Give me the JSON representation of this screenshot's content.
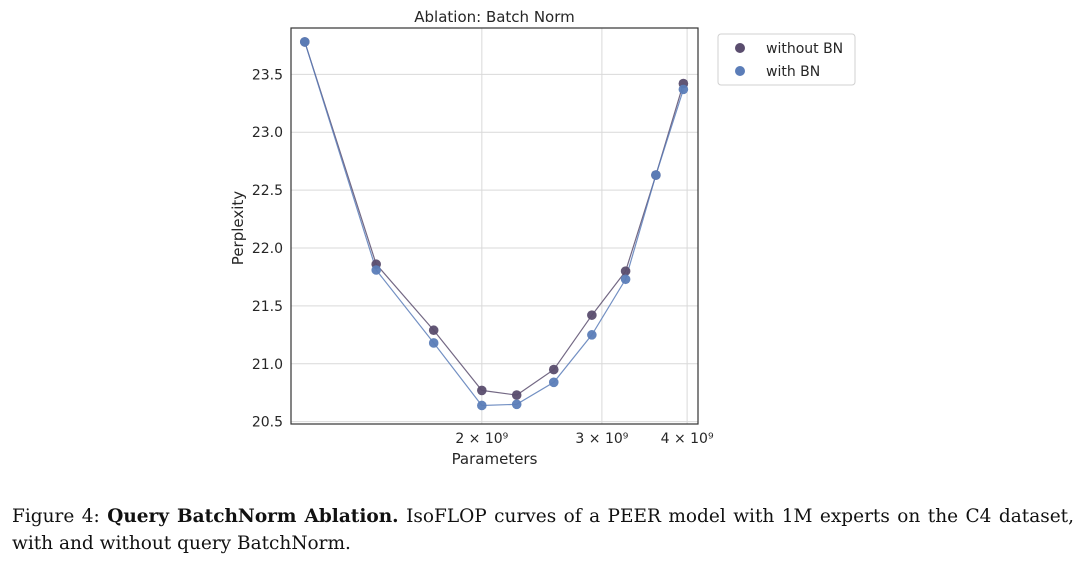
{
  "chart_data": {
    "type": "line",
    "title": "Ablation: Batch Norm",
    "xlabel": "Parameters",
    "ylabel": "Perplexity",
    "xscale": "log",
    "xlim": [
      1050000000.0,
      4150000000.0
    ],
    "ylim": [
      20.48,
      23.9
    ],
    "yticks": [
      20.5,
      21.0,
      21.5,
      22.0,
      22.5,
      23.0,
      23.5
    ],
    "ytick_labels": [
      "20.5",
      "21.0",
      "21.5",
      "22.0",
      "22.5",
      "23.0",
      "23.5"
    ],
    "xticks": [
      2000000000.0,
      3000000000.0,
      4000000000.0
    ],
    "xtick_labels": [
      "2 × 10⁹",
      "3 × 10⁹",
      "4 × 10⁹"
    ],
    "grid": true,
    "legend_position": "outside-upper-right",
    "x": [
      1100000000.0,
      1400000000.0,
      1700000000.0,
      2000000000.0,
      2250000000.0,
      2550000000.0,
      2900000000.0,
      3250000000.0,
      3600000000.0,
      3950000000.0
    ],
    "series": [
      {
        "name": "without BN",
        "color": "#5a4d6e",
        "values": [
          23.78,
          21.86,
          21.29,
          20.77,
          20.73,
          20.95,
          21.42,
          21.8,
          22.63,
          23.42
        ]
      },
      {
        "name": "with BN",
        "color": "#5b7db8",
        "values": [
          23.78,
          21.81,
          21.18,
          20.64,
          20.65,
          20.84,
          21.25,
          21.73,
          22.63,
          23.37
        ]
      }
    ]
  },
  "caption": {
    "figure_label": "Figure 4:",
    "bold_title": "Query BatchNorm Ablation.",
    "text": "IsoFLOP curves of a PEER model with 1M experts on the C4 dataset, with and without query BatchNorm."
  }
}
